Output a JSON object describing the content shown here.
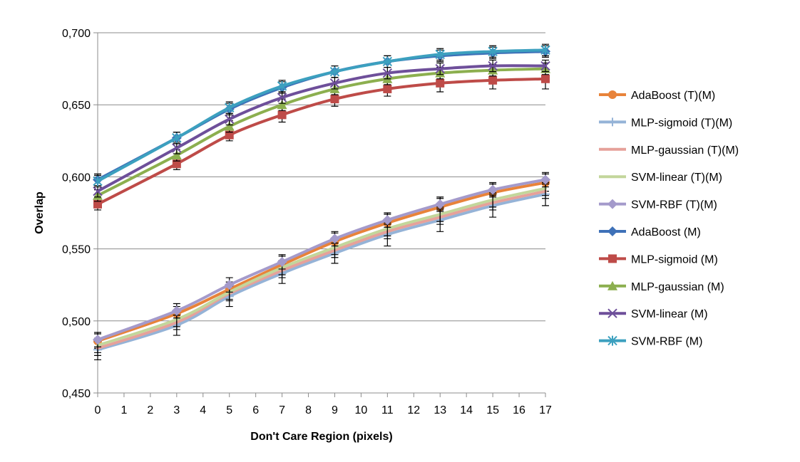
{
  "chart_data": {
    "type": "line",
    "xlabel": "Don't Care Region (pixels)",
    "ylabel": "Overlap",
    "x_ticks": [
      "0",
      "1",
      "2",
      "3",
      "4",
      "5",
      "6",
      "7",
      "8",
      "9",
      "10",
      "11",
      "12",
      "13",
      "14",
      "15",
      "16",
      "17"
    ],
    "y_ticks": [
      "0,450",
      "0,500",
      "0,550",
      "0,600",
      "0,650",
      "0,700"
    ],
    "xlim": [
      0,
      17
    ],
    "ylim": [
      0.45,
      0.7
    ],
    "grid": "horizontal",
    "legend_position": "right",
    "x": [
      0,
      3,
      5,
      7,
      9,
      11,
      13,
      15,
      17
    ],
    "series": [
      {
        "name": "AdaBoost (T)(M)",
        "color": "#E8833A",
        "marker": "circle",
        "values": [
          0.486,
          0.505,
          0.522,
          0.539,
          0.555,
          0.568,
          0.579,
          0.589,
          0.596
        ],
        "errors": [
          0.005,
          0.005,
          0.005,
          0.006,
          0.006,
          0.006,
          0.006,
          0.006,
          0.006
        ]
      },
      {
        "name": "MLP-sigmoid (T)(M)",
        "color": "#95B3D7",
        "marker": "plus",
        "values": [
          0.48,
          0.497,
          0.517,
          0.533,
          0.547,
          0.56,
          0.57,
          0.58,
          0.588
        ],
        "errors": [
          0.007,
          0.007,
          0.007,
          0.007,
          0.007,
          0.008,
          0.008,
          0.008,
          0.008
        ]
      },
      {
        "name": "MLP-gaussian (T)(M)",
        "color": "#E6A19A",
        "marker": "none",
        "values": [
          0.481,
          0.499,
          0.519,
          0.535,
          0.549,
          0.562,
          0.572,
          0.582,
          0.59
        ],
        "errors": [
          0.005,
          0.005,
          0.005,
          0.005,
          0.005,
          0.005,
          0.005,
          0.005,
          0.005
        ]
      },
      {
        "name": "SVM-linear (T)(M)",
        "color": "#C3D69B",
        "marker": "none",
        "values": [
          0.483,
          0.501,
          0.52,
          0.537,
          0.551,
          0.564,
          0.574,
          0.584,
          0.592
        ],
        "errors": [
          0.005,
          0.005,
          0.005,
          0.005,
          0.005,
          0.005,
          0.005,
          0.005,
          0.005
        ]
      },
      {
        "name": "SVM-RBF (T)(M)",
        "color": "#A49ACB",
        "marker": "diamond",
        "values": [
          0.487,
          0.507,
          0.525,
          0.541,
          0.557,
          0.57,
          0.581,
          0.591,
          0.598
        ],
        "errors": [
          0.005,
          0.005,
          0.005,
          0.005,
          0.005,
          0.005,
          0.005,
          0.005,
          0.005
        ]
      },
      {
        "name": "AdaBoost (M)",
        "color": "#3E71B8",
        "marker": "diamond",
        "values": [
          0.598,
          0.627,
          0.647,
          0.662,
          0.673,
          0.68,
          0.684,
          0.686,
          0.687
        ],
        "errors": [
          0.004,
          0.004,
          0.004,
          0.004,
          0.004,
          0.004,
          0.004,
          0.004,
          0.004
        ]
      },
      {
        "name": "MLP-sigmoid (M)",
        "color": "#BE4B48",
        "marker": "square",
        "values": [
          0.581,
          0.609,
          0.629,
          0.643,
          0.654,
          0.661,
          0.665,
          0.667,
          0.668
        ],
        "errors": [
          0.004,
          0.004,
          0.004,
          0.005,
          0.005,
          0.005,
          0.006,
          0.006,
          0.007
        ]
      },
      {
        "name": "MLP-gaussian (M)",
        "color": "#8CAF4F",
        "marker": "triangle",
        "values": [
          0.587,
          0.615,
          0.635,
          0.65,
          0.661,
          0.668,
          0.672,
          0.674,
          0.675
        ],
        "errors": [
          0.004,
          0.004,
          0.004,
          0.004,
          0.004,
          0.004,
          0.004,
          0.004,
          0.004
        ]
      },
      {
        "name": "SVM-linear (M)",
        "color": "#6E4F9A",
        "marker": "x",
        "values": [
          0.59,
          0.62,
          0.64,
          0.655,
          0.665,
          0.672,
          0.675,
          0.677,
          0.677
        ],
        "errors": [
          0.004,
          0.004,
          0.004,
          0.004,
          0.004,
          0.004,
          0.004,
          0.004,
          0.004
        ]
      },
      {
        "name": "SVM-RBF (M)",
        "color": "#3CA0BF",
        "marker": "asterisk",
        "values": [
          0.597,
          0.627,
          0.648,
          0.663,
          0.673,
          0.68,
          0.685,
          0.687,
          0.688
        ],
        "errors": [
          0.004,
          0.004,
          0.004,
          0.004,
          0.004,
          0.004,
          0.004,
          0.004,
          0.004
        ]
      }
    ]
  }
}
